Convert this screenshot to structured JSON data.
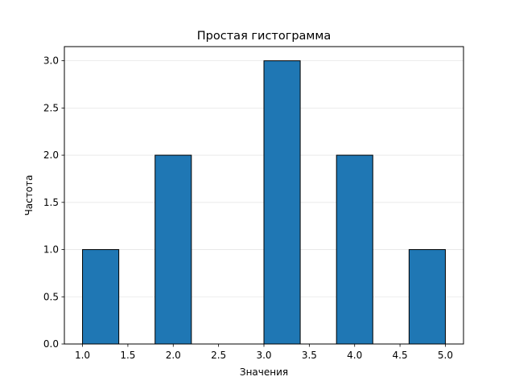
{
  "chart_data": {
    "type": "bar",
    "title": "Простая гистограмма",
    "xlabel": "Значения",
    "ylabel": "Частота",
    "xlim": [
      0.8,
      5.2
    ],
    "ylim": [
      0,
      3.15
    ],
    "grid": {
      "y": true,
      "x": false
    },
    "bar_color": "#1f77b4",
    "edge_color": "#000000",
    "bins": [
      {
        "start": 1.0,
        "end": 1.4,
        "count": 1
      },
      {
        "start": 1.4,
        "end": 1.8,
        "count": 0
      },
      {
        "start": 1.8,
        "end": 2.2,
        "count": 2
      },
      {
        "start": 2.2,
        "end": 2.6,
        "count": 0
      },
      {
        "start": 2.6,
        "end": 3.0,
        "count": 0
      },
      {
        "start": 3.0,
        "end": 3.4,
        "count": 3
      },
      {
        "start": 3.4,
        "end": 3.8,
        "count": 0
      },
      {
        "start": 3.8,
        "end": 4.2,
        "count": 2
      },
      {
        "start": 4.2,
        "end": 4.6,
        "count": 0
      },
      {
        "start": 4.6,
        "end": 5.0,
        "count": 1
      }
    ],
    "xticks": [
      "1.0",
      "1.5",
      "2.0",
      "2.5",
      "3.0",
      "3.5",
      "4.0",
      "4.5",
      "5.0"
    ],
    "yticks": [
      "0.0",
      "0.5",
      "1.0",
      "1.5",
      "2.0",
      "2.5",
      "3.0"
    ]
  }
}
